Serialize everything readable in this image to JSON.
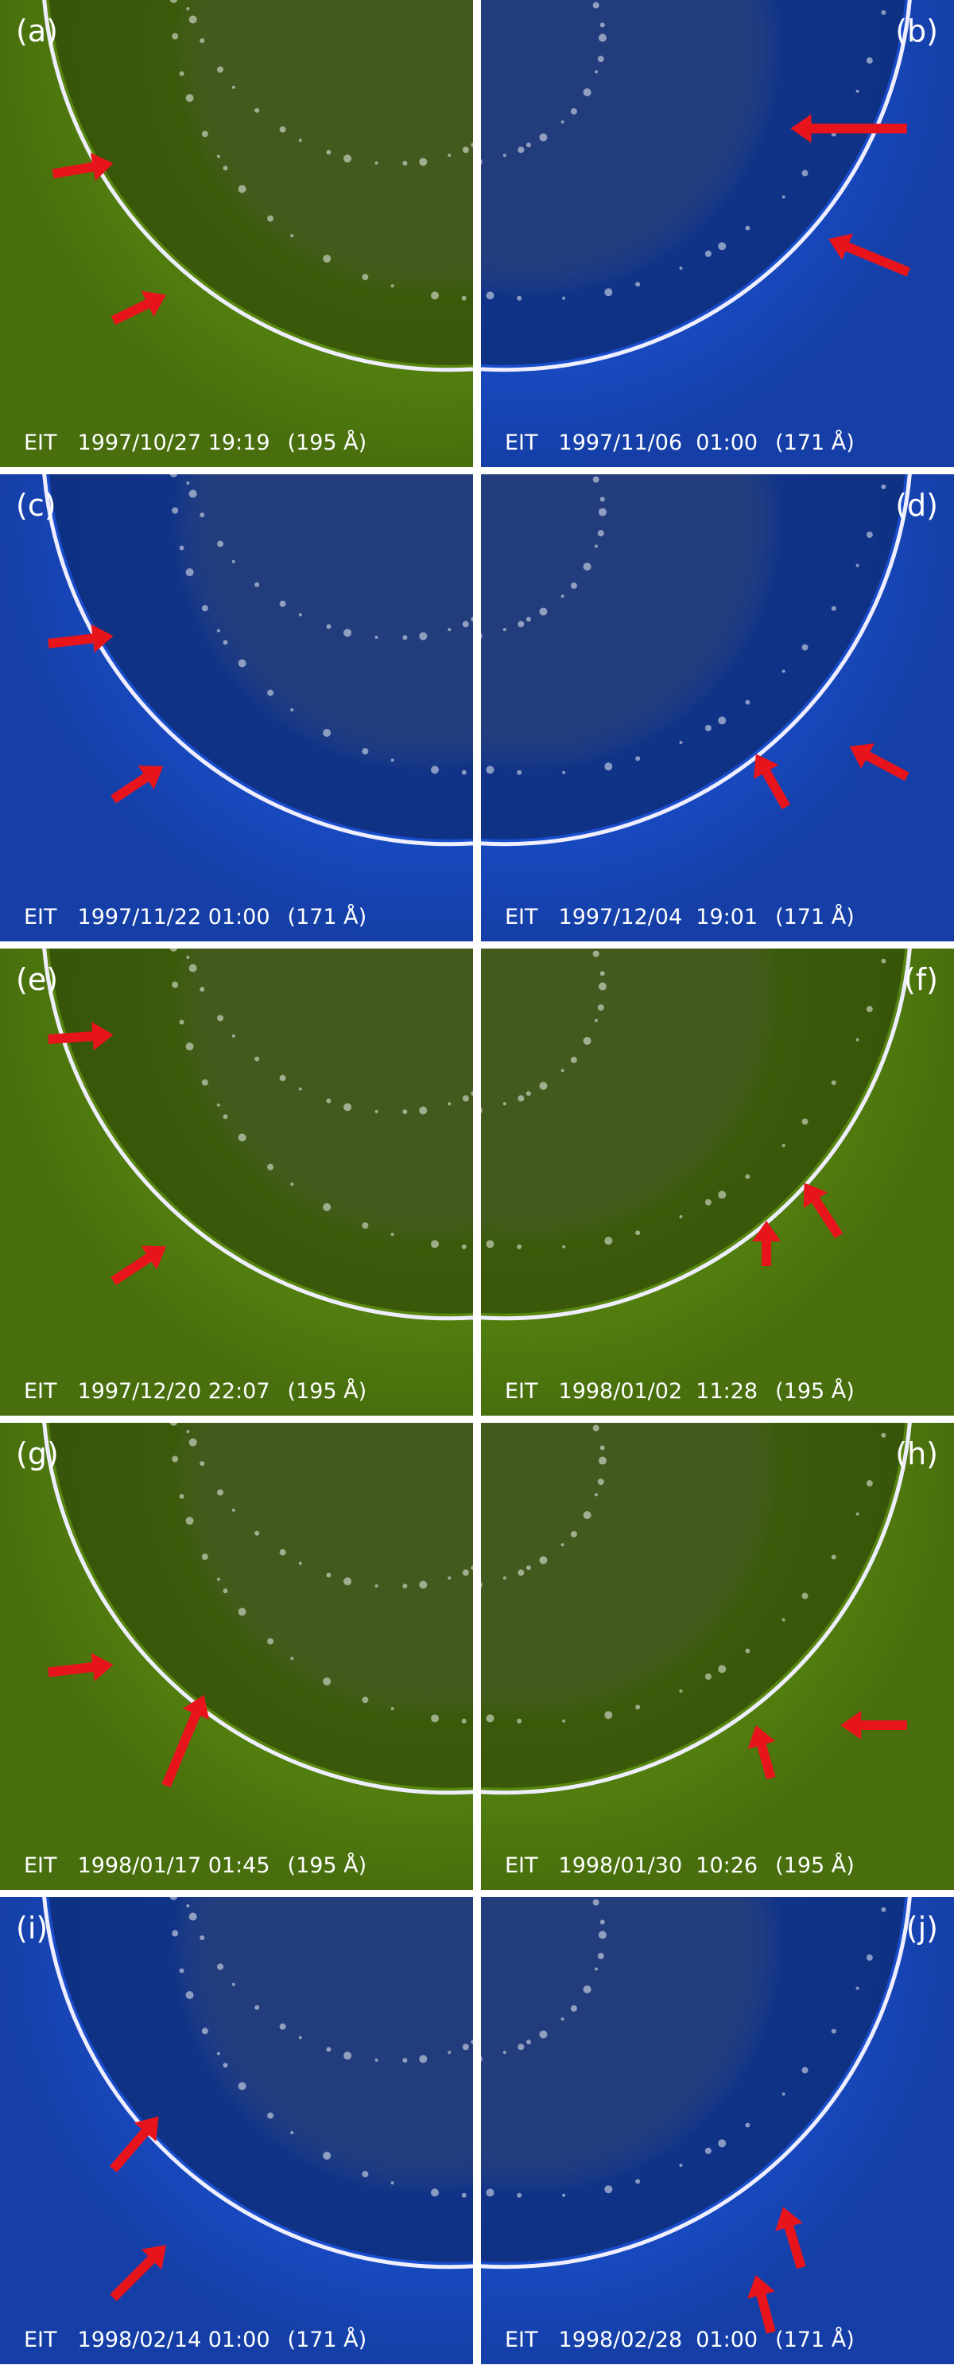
{
  "panels": [
    {
      "label": "(a)",
      "instrument": "EIT",
      "timestamp": "1997/10/27 19:19",
      "wavelength": "(195 Å)",
      "color": "#5a8a10"
    },
    {
      "label": "(b)",
      "instrument": "EIT",
      "timestamp": "1997/11/06  01:00",
      "wavelength": "(171 Å)",
      "color": "#1a4fd0"
    },
    {
      "label": "(c)",
      "instrument": "EIT",
      "timestamp": "1997/11/22 01:00",
      "wavelength": "(171 Å)",
      "color": "#1a4fd0"
    },
    {
      "label": "(d)",
      "instrument": "EIT",
      "timestamp": "1997/12/04  19:01",
      "wavelength": "(171 Å)",
      "color": "#1a4fd0"
    },
    {
      "label": "(e)",
      "instrument": "EIT",
      "timestamp": "1997/12/20 22:07",
      "wavelength": "(195 Å)",
      "color": "#5a8a10"
    },
    {
      "label": "(f)",
      "instrument": "EIT",
      "timestamp": "1998/01/02  11:28",
      "wavelength": "(195 Å)",
      "color": "#5a8a10"
    },
    {
      "label": "(g)",
      "instrument": "EIT",
      "timestamp": "1998/01/17 01:45",
      "wavelength": "(195 Å)",
      "color": "#5a8a10"
    },
    {
      "label": "(h)",
      "instrument": "EIT",
      "timestamp": "1998/01/30  10:26",
      "wavelength": "(195 Å)",
      "color": "#5a8a10"
    },
    {
      "label": "(i)",
      "instrument": "EIT",
      "timestamp": "1998/02/14 01:00",
      "wavelength": "(171 Å)",
      "color": "#1a4fd0"
    },
    {
      "label": "(j)",
      "instrument": "EIT",
      "timestamp": "1998/02/28  01:00",
      "wavelength": "(171 Å)",
      "color": "#1a4fd0"
    }
  ]
}
